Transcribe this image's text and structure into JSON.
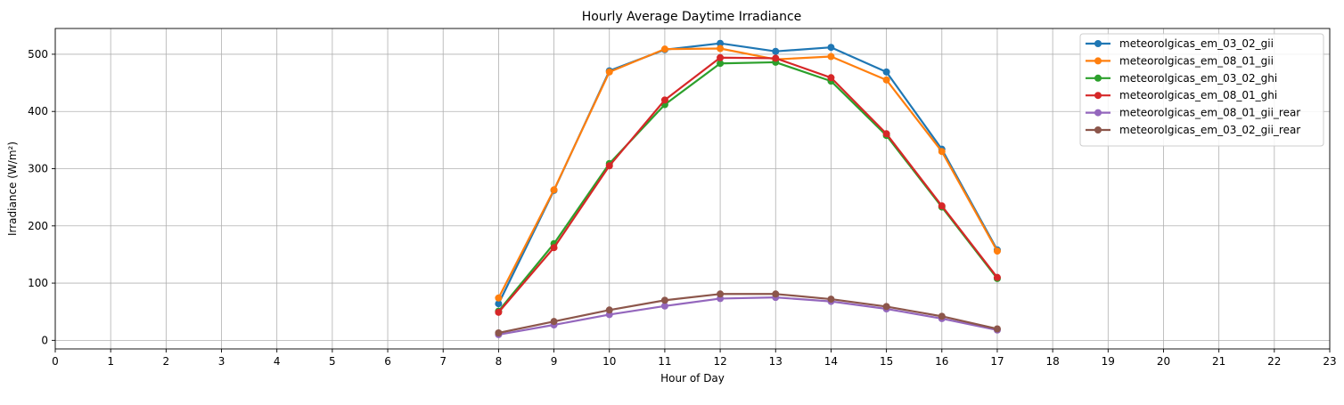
{
  "chart_data": {
    "type": "line",
    "title": "Hourly Average Daytime Irradiance",
    "xlabel": "Hour of Day",
    "ylabel": "Irradiance (W/m²)",
    "xlim": [
      0,
      23
    ],
    "ylim": [
      -15,
      545
    ],
    "xticks": [
      0,
      1,
      2,
      3,
      4,
      5,
      6,
      7,
      8,
      9,
      10,
      11,
      12,
      13,
      14,
      15,
      16,
      17,
      18,
      19,
      20,
      21,
      22,
      23
    ],
    "yticks": [
      0,
      100,
      200,
      300,
      400,
      500
    ],
    "grid": true,
    "legend_position": "top-right",
    "x": [
      8,
      9,
      10,
      11,
      12,
      13,
      14,
      15,
      16,
      17
    ],
    "series": [
      {
        "name": "meteorolgicas_em_03_02_gii",
        "color": "#1f77b4",
        "values": [
          64,
          262,
          471,
          508,
          519,
          505,
          512,
          469,
          334,
          158
        ]
      },
      {
        "name": "meteorolgicas_em_08_01_gii",
        "color": "#ff7f0e",
        "values": [
          74,
          263,
          469,
          509,
          510,
          491,
          496,
          455,
          330,
          156
        ]
      },
      {
        "name": "meteorolgicas_em_03_02_ghi",
        "color": "#2ca02c",
        "values": [
          51,
          169,
          309,
          412,
          484,
          486,
          453,
          358,
          233,
          108
        ]
      },
      {
        "name": "meteorolgicas_em_08_01_ghi",
        "color": "#d62728",
        "values": [
          49,
          162,
          305,
          420,
          494,
          493,
          459,
          361,
          235,
          110
        ]
      },
      {
        "name": "meteorolgicas_em_08_01_gii_rear",
        "color": "#9467bd",
        "values": [
          10,
          27,
          45,
          60,
          73,
          75,
          68,
          55,
          38,
          18
        ]
      },
      {
        "name": "meteorolgicas_em_03_02_gii_rear",
        "color": "#8c564b",
        "values": [
          13,
          33,
          53,
          70,
          81,
          81,
          72,
          59,
          42,
          20
        ]
      }
    ]
  }
}
